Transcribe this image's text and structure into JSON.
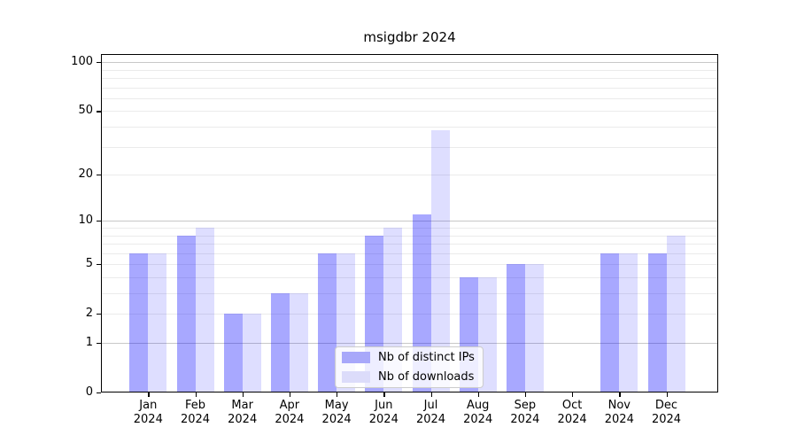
{
  "chart_data": {
    "type": "bar",
    "title": "msigdbr 2024",
    "categories": [
      "Jan 2024",
      "Feb 2024",
      "Mar 2024",
      "Apr 2024",
      "May 2024",
      "Jun 2024",
      "Jul 2024",
      "Aug 2024",
      "Sep 2024",
      "Oct 2024",
      "Nov 2024",
      "Dec 2024"
    ],
    "series": [
      {
        "name": "Nb of distinct IPs",
        "values": [
          6,
          8,
          2,
          3,
          6,
          8,
          11,
          4,
          5,
          0,
          6,
          6
        ],
        "fill": "rgba(0,0,255,0.34)",
        "legend_color": "#a8a8fa"
      },
      {
        "name": "Nb of downloads",
        "values": [
          6,
          9,
          2,
          3,
          6,
          9,
          38,
          4,
          5,
          0,
          6,
          8
        ],
        "fill": "rgba(0,0,255,0.13)",
        "legend_color": "#dcdcfa"
      }
    ],
    "xlabel": "",
    "ylabel": "",
    "yscale": "log1p",
    "ylim": [
      0,
      112
    ],
    "yticks": [
      0,
      1,
      2,
      5,
      10,
      20,
      50,
      100
    ],
    "ytick_labels": [
      "0",
      "1",
      "2",
      "5",
      "10",
      "20",
      "50",
      "100"
    ],
    "grid": {
      "minor_values": [
        2,
        3,
        4,
        5,
        6,
        7,
        8,
        9,
        20,
        30,
        40,
        50,
        60,
        70,
        80,
        90
      ],
      "major_values": [
        1,
        10,
        100
      ],
      "minor_color": "#ebebeb",
      "major_color": "#c8c8c8"
    },
    "legend_position": "lower center",
    "background_color": "#ffffff",
    "axis_color": "#000000"
  }
}
